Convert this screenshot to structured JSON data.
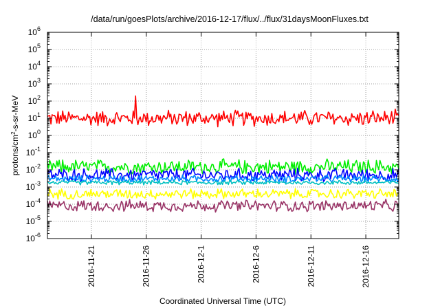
{
  "chart_data": {
    "type": "line",
    "title": "/data/run/goesPlots/archive/2016-12-17/flux/../flux/31daysMoonFluxes.txt",
    "xlabel": "Coordinated Universal Time (UTC)",
    "ylabel": {
      "prefix": "protons/cm",
      "sup": "2",
      "suffix": "-s-sr-MeV"
    },
    "yscale": "log",
    "ylim": [
      1e-06,
      1000000.0
    ],
    "grid": true,
    "xlim": [
      "2016-11-17",
      "2016-12-19"
    ],
    "y_ticks": [
      {
        "exp": "-6",
        "v": 1e-06
      },
      {
        "exp": "-5",
        "v": 1e-05
      },
      {
        "exp": "-4",
        "v": 0.0001
      },
      {
        "exp": "-3",
        "v": 0.001
      },
      {
        "exp": "-2",
        "v": 0.01
      },
      {
        "exp": "-1",
        "v": 0.1
      },
      {
        "exp": "0",
        "v": 1
      },
      {
        "exp": "1",
        "v": 10
      },
      {
        "exp": "2",
        "v": 100
      },
      {
        "exp": "3",
        "v": 1000.0
      },
      {
        "exp": "4",
        "v": 10000.0
      },
      {
        "exp": "5",
        "v": 100000.0
      },
      {
        "exp": "6",
        "v": 1000000.0
      }
    ],
    "x_ticks": [
      {
        "label": "2016-11-21",
        "date": "2016-11-21"
      },
      {
        "label": "2016-11-26",
        "date": "2016-11-26"
      },
      {
        "label": "2016-12-1",
        "date": "2016-12-01"
      },
      {
        "label": "2016-12-6",
        "date": "2016-12-06"
      },
      {
        "label": "2016-12-11",
        "date": "2016-12-11"
      },
      {
        "label": "2016-12-16",
        "date": "2016-12-16"
      }
    ],
    "series": [
      {
        "color": "#ff0000",
        "base": 10,
        "spread": 0.55,
        "spikes": [
          {
            "date": "2016-11-25",
            "value": 200
          }
        ]
      },
      {
        "color": "#00ee00",
        "base": 0.015,
        "spread": 0.5,
        "spikes": []
      },
      {
        "color": "#0000ff",
        "base": 0.005,
        "spread": 0.45,
        "spikes": []
      },
      {
        "color": "#0088ff",
        "base": 0.003,
        "spread": 0.25,
        "spikes": []
      },
      {
        "color": "#00c0c0",
        "base": 0.0018,
        "spread": 0.15,
        "spikes": []
      },
      {
        "color": "#ffff00",
        "base": 0.0004,
        "spread": 0.35,
        "spikes": []
      },
      {
        "color": "#993366",
        "base": 8e-05,
        "spread": 0.4,
        "spikes": []
      }
    ]
  }
}
